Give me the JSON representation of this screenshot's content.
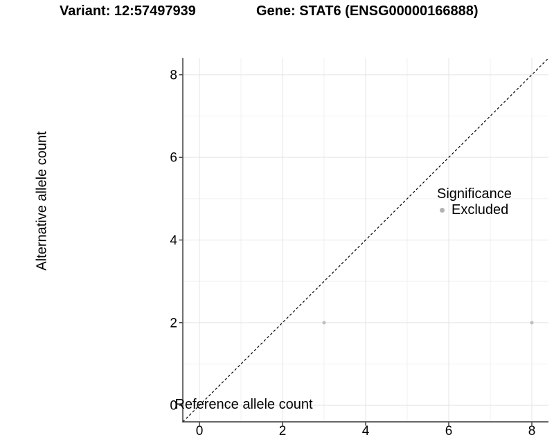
{
  "titles": {
    "variant": "Variant: 12:57497939",
    "gene": "Gene: STAT6 (ENSG00000166888)"
  },
  "chart_data": {
    "type": "scatter",
    "xlabel": "Reference allele count",
    "ylabel": "Alternative allele count",
    "xlim": [
      -0.4,
      8.4
    ],
    "ylim": [
      -0.4,
      8.4
    ],
    "x_ticks": [
      0,
      2,
      4,
      6,
      8
    ],
    "y_ticks": [
      0,
      2,
      4,
      6,
      8
    ],
    "x_minor_ticks": [
      1,
      3,
      5,
      7
    ],
    "y_minor_ticks": [
      1,
      3,
      5,
      7
    ],
    "grid": true,
    "legend_position": "right",
    "reference_line": {
      "type": "identity",
      "slope": 1,
      "intercept": 0,
      "style": "dashed",
      "color": "#000000"
    },
    "series": [
      {
        "name": "Excluded",
        "color": "#c0c0c0",
        "points": [
          {
            "x": 3,
            "y": 2
          },
          {
            "x": 8,
            "y": 2
          }
        ]
      }
    ],
    "legend": {
      "title": "Significance",
      "entries": [
        {
          "label": "Excluded",
          "color": "#b2b2b2"
        }
      ]
    }
  },
  "colors": {
    "axis_line": "#333333",
    "tick_mark": "#333333",
    "tick_label": "#000000",
    "grid_major": "#e4e4e4",
    "grid_minor": "#f1f1f1",
    "point": "#c0c0c0",
    "legend_dot": "#b2b2b2",
    "reference_line": "#000000",
    "background": "#ffffff"
  }
}
